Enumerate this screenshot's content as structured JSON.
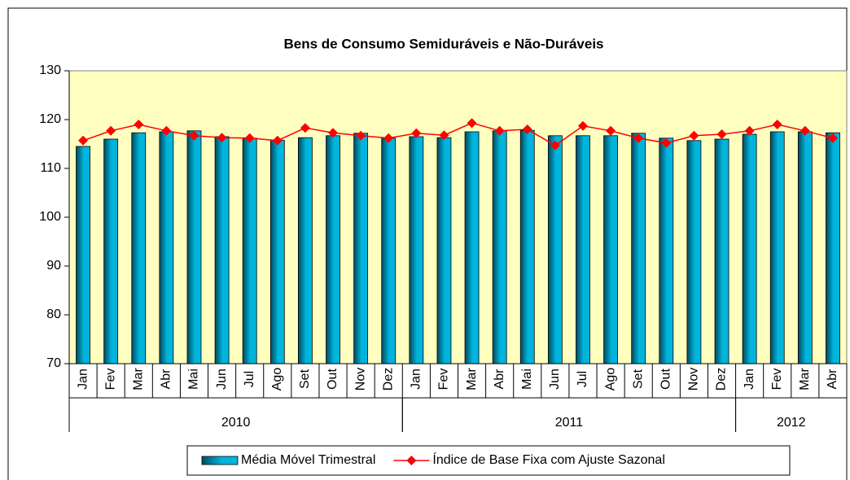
{
  "chart_data": {
    "type": "bar_line",
    "title": "Bens de Consumo  Semiduráveis e Não-Duráveis",
    "groups": [
      {
        "label": "2010",
        "categories": [
          "Jan",
          "Fev",
          "Mar",
          "Abr",
          "Mai",
          "Jun",
          "Jul",
          "Ago",
          "Set",
          "Out",
          "Nov",
          "Dez"
        ]
      },
      {
        "label": "2011",
        "categories": [
          "Jan",
          "Fev",
          "Mar",
          "Abr",
          "Mai",
          "Jun",
          "Jul",
          "Ago",
          "Set",
          "Out",
          "Nov",
          "Dez"
        ]
      },
      {
        "label": "2012",
        "categories": [
          "Jan",
          "Fev",
          "Mar",
          "Abr"
        ]
      }
    ],
    "series": [
      {
        "name": "Média Móvel Trimestral",
        "type": "bar",
        "color": "#00b4dc",
        "values": [
          114.5,
          116,
          117.3,
          117.5,
          117.7,
          116.5,
          116.2,
          115.8,
          116.3,
          116.7,
          117.2,
          116.2,
          116.5,
          116.3,
          117.5,
          117.7,
          117.8,
          116.7,
          116.7,
          116.7,
          117.2,
          116.2,
          115.7,
          116,
          117,
          117.5,
          117.5,
          117.3
        ]
      },
      {
        "name": "Índice de Base Fixa com Ajuste Sazonal",
        "type": "line",
        "color": "#ff0000",
        "values": [
          115.7,
          117.7,
          119,
          117.7,
          116.7,
          116.3,
          116.2,
          115.7,
          118.3,
          117.3,
          116.7,
          116.2,
          117.2,
          116.8,
          119.3,
          117.7,
          118,
          114.7,
          118.7,
          117.7,
          116.2,
          115.2,
          116.7,
          117,
          117.7,
          119,
          117.7,
          116.2
        ]
      }
    ],
    "ylim": [
      70,
      130
    ],
    "yticks": [
      70,
      80,
      90,
      100,
      110,
      120,
      130
    ],
    "plot_background": "#ffffc0"
  }
}
